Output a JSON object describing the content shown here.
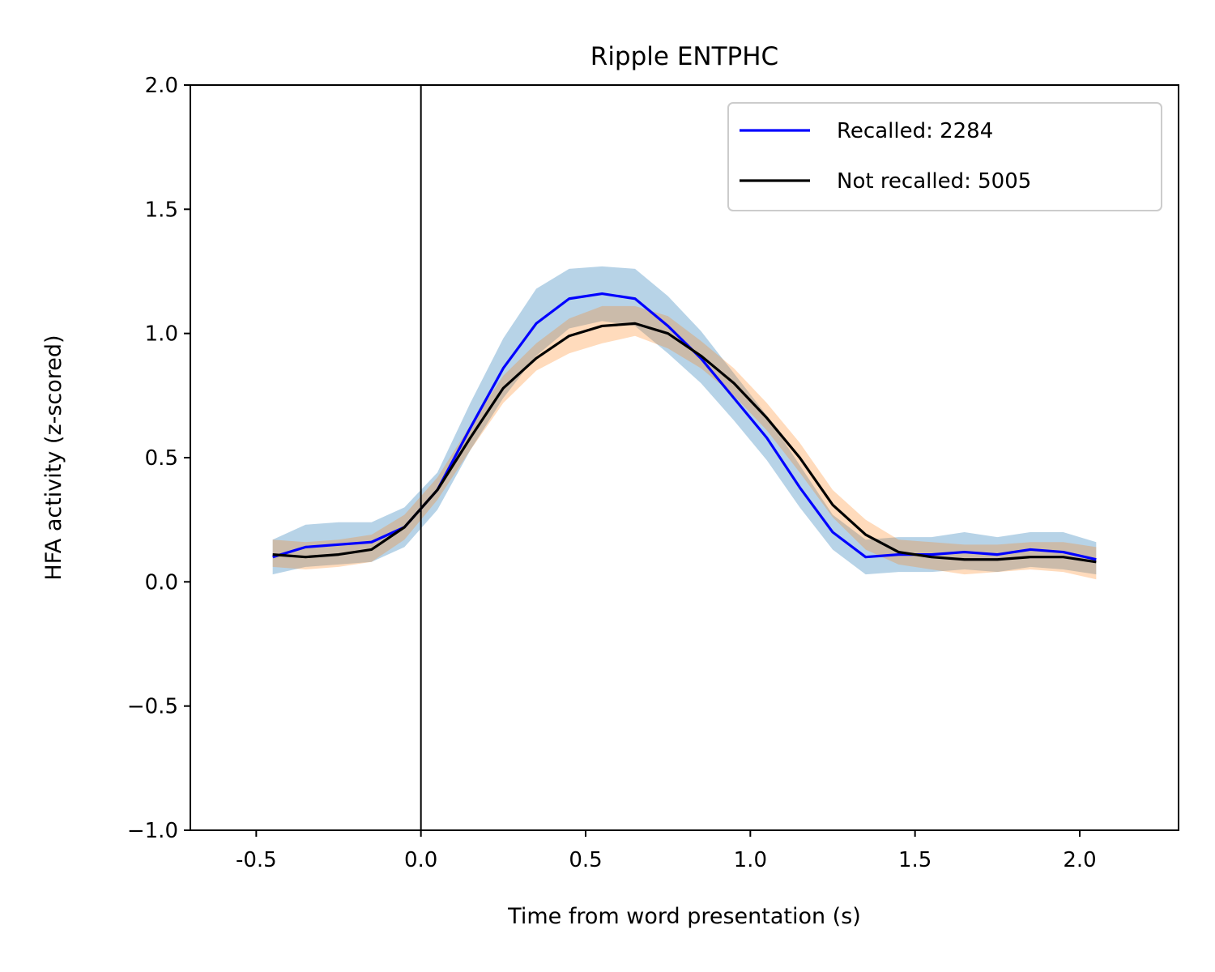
{
  "chart_data": {
    "type": "line",
    "title": "Ripple ENTPHC",
    "xlabel": "Time from word presentation (s)",
    "ylabel": "HFA activity (z-scored)",
    "xlim": [
      -0.7,
      2.3
    ],
    "ylim": [
      -1.0,
      2.0
    ],
    "xticks": [
      -0.5,
      0.0,
      0.5,
      1.0,
      1.5,
      2.0
    ],
    "xtick_labels": [
      "-0.5",
      "0.0",
      "0.5",
      "1.0",
      "1.5",
      "2.0"
    ],
    "yticks": [
      -1.0,
      -0.5,
      0.0,
      0.5,
      1.0,
      1.5,
      2.0
    ],
    "ytick_labels": [
      "−1.0",
      "−0.5",
      "0.0",
      "0.5",
      "1.0",
      "1.5",
      "2.0"
    ],
    "vline": 0.0,
    "grid": false,
    "legend_position": "top-right",
    "x": [
      -0.45,
      -0.35,
      -0.25,
      -0.15,
      -0.05,
      0.05,
      0.15,
      0.25,
      0.35,
      0.45,
      0.55,
      0.65,
      0.75,
      0.85,
      0.95,
      1.05,
      1.15,
      1.25,
      1.35,
      1.45,
      1.55,
      1.65,
      1.75,
      1.85,
      1.95,
      2.05
    ],
    "series": [
      {
        "name": "Recalled: 2284",
        "color": "#0000ff",
        "band_color": "#1f77b4",
        "values": [
          0.1,
          0.14,
          0.15,
          0.16,
          0.22,
          0.37,
          0.62,
          0.86,
          1.04,
          1.14,
          1.16,
          1.14,
          1.03,
          0.9,
          0.74,
          0.58,
          0.38,
          0.2,
          0.1,
          0.11,
          0.11,
          0.12,
          0.11,
          0.13,
          0.12,
          0.09
        ],
        "lower": [
          0.03,
          0.06,
          0.07,
          0.08,
          0.14,
          0.29,
          0.53,
          0.74,
          0.91,
          1.02,
          1.05,
          1.03,
          0.92,
          0.8,
          0.65,
          0.49,
          0.3,
          0.13,
          0.03,
          0.04,
          0.04,
          0.05,
          0.04,
          0.06,
          0.05,
          0.03
        ],
        "upper": [
          0.17,
          0.23,
          0.24,
          0.24,
          0.3,
          0.44,
          0.72,
          0.98,
          1.18,
          1.26,
          1.27,
          1.26,
          1.15,
          1.01,
          0.84,
          0.67,
          0.47,
          0.27,
          0.17,
          0.18,
          0.18,
          0.2,
          0.18,
          0.2,
          0.2,
          0.16
        ]
      },
      {
        "name": "Not recalled: 5005",
        "color": "#000000",
        "band_color": "#ff7f0e",
        "values": [
          0.11,
          0.1,
          0.11,
          0.13,
          0.22,
          0.37,
          0.58,
          0.78,
          0.9,
          0.99,
          1.03,
          1.04,
          1.0,
          0.91,
          0.8,
          0.66,
          0.5,
          0.31,
          0.19,
          0.12,
          0.1,
          0.09,
          0.09,
          0.1,
          0.1,
          0.08
        ],
        "lower": [
          0.06,
          0.05,
          0.06,
          0.08,
          0.17,
          0.33,
          0.53,
          0.72,
          0.85,
          0.92,
          0.96,
          0.99,
          0.94,
          0.86,
          0.75,
          0.61,
          0.44,
          0.26,
          0.13,
          0.07,
          0.05,
          0.03,
          0.04,
          0.05,
          0.04,
          0.01
        ],
        "upper": [
          0.17,
          0.16,
          0.17,
          0.19,
          0.27,
          0.42,
          0.63,
          0.83,
          0.96,
          1.06,
          1.11,
          1.11,
          1.07,
          0.97,
          0.86,
          0.72,
          0.56,
          0.37,
          0.25,
          0.17,
          0.16,
          0.15,
          0.15,
          0.16,
          0.16,
          0.14
        ]
      }
    ]
  }
}
